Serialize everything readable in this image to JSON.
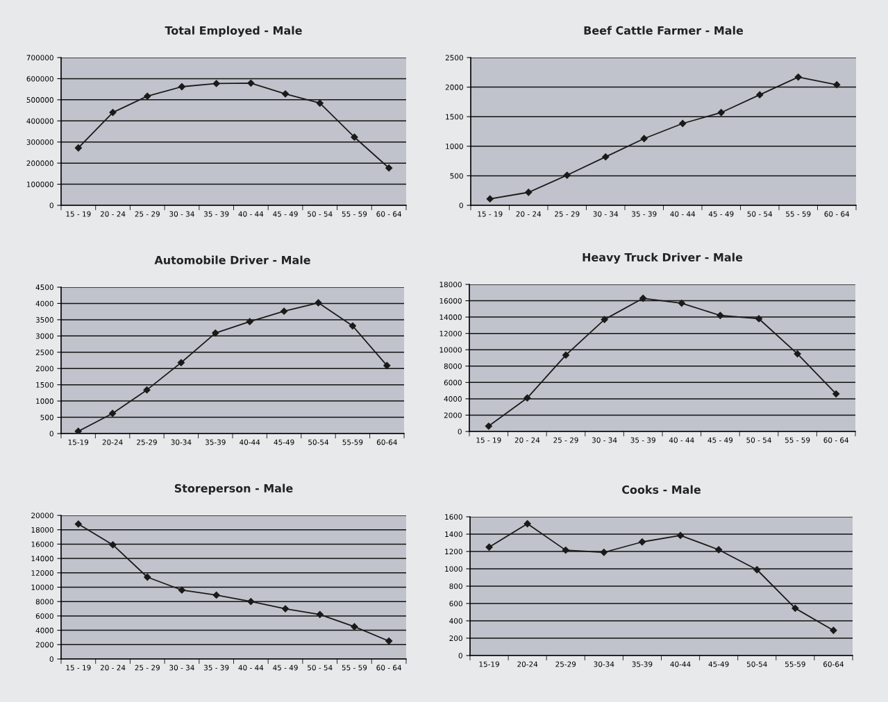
{
  "chart_data": [
    {
      "type": "line",
      "title": "Total Employed - Male",
      "categories": [
        "15 - 19",
        "20 - 24",
        "25 - 29",
        "30 - 34",
        "35 - 39",
        "40 - 44",
        "45 - 49",
        "50 - 54",
        "55 - 59",
        "60 - 64"
      ],
      "ylim": [
        0,
        700000
      ],
      "yticks": [
        0,
        100000,
        200000,
        300000,
        400000,
        500000,
        600000,
        700000
      ],
      "grid": "y",
      "marker": "diamond",
      "line_style": "solid",
      "series": [
        {
          "color": "#1a1a1a",
          "values": [
            272000,
            440000,
            517000,
            562000,
            577000,
            579000,
            528000,
            484000,
            323000,
            177000
          ]
        }
      ]
    },
    {
      "type": "line",
      "title": "Beef Cattle Farmer - Male",
      "categories": [
        "15 - 19",
        "20 - 24",
        "25 - 29",
        "30 - 34",
        "35 - 39",
        "40 - 44",
        "45 - 49",
        "50 - 54",
        "55 - 59",
        "60 - 64"
      ],
      "ylim": [
        0,
        2500
      ],
      "yticks": [
        0,
        500,
        1000,
        1500,
        2000,
        2500
      ],
      "grid": "y",
      "marker": "diamond",
      "line_style": "solid",
      "series": [
        {
          "color": "#1a1a1a",
          "values": [
            110,
            220,
            510,
            820,
            1130,
            1385,
            1570,
            1870,
            2170,
            2040
          ]
        }
      ]
    },
    {
      "type": "line",
      "title": "Automobile Driver - Male",
      "categories": [
        "15-19",
        "20-24",
        "25-29",
        "30-34",
        "35-39",
        "40-44",
        "45-49",
        "50-54",
        "55-59",
        "60-64"
      ],
      "ylim": [
        0,
        4500
      ],
      "yticks": [
        0,
        500,
        1000,
        1500,
        2000,
        2500,
        3000,
        3500,
        4000,
        4500
      ],
      "grid": "y",
      "marker": "diamond",
      "line_style": "solid",
      "series": [
        {
          "color": "#1a1a1a",
          "values": [
            70,
            620,
            1340,
            2180,
            3090,
            3440,
            3760,
            4020,
            3310,
            2090
          ]
        }
      ]
    },
    {
      "type": "line",
      "title": "Heavy Truck Driver - Male",
      "categories": [
        "15 - 19",
        "20 - 24",
        "25 - 29",
        "30 - 34",
        "35 - 39",
        "40 - 44",
        "45 - 49",
        "50 - 54",
        "55 - 59",
        "60 - 64"
      ],
      "ylim": [
        0,
        18000
      ],
      "yticks": [
        0,
        2000,
        4000,
        6000,
        8000,
        10000,
        12000,
        14000,
        16000,
        18000
      ],
      "grid": "y",
      "marker": "diamond",
      "line_style": "solid",
      "series": [
        {
          "color": "#1a1a1a",
          "values": [
            650,
            4100,
            9350,
            13700,
            16300,
            15700,
            14200,
            13800,
            9500,
            4600
          ]
        }
      ]
    },
    {
      "type": "line",
      "title": "Storeperson - Male",
      "categories": [
        "15 - 19",
        "20 - 24",
        "25 - 29",
        "30 - 34",
        "35 - 39",
        "40 - 44",
        "45 - 49",
        "50 - 54",
        "55 - 59",
        "60 - 64"
      ],
      "ylim": [
        0,
        20000
      ],
      "yticks": [
        0,
        2000,
        4000,
        6000,
        8000,
        10000,
        12000,
        14000,
        16000,
        18000,
        20000
      ],
      "grid": "y",
      "marker": "diamond",
      "line_style": "solid",
      "series": [
        {
          "color": "#1a1a1a",
          "values": [
            18800,
            15900,
            11400,
            9600,
            8900,
            8000,
            7000,
            6200,
            4500,
            2500
          ]
        }
      ]
    },
    {
      "type": "line",
      "title": "Cooks - Male",
      "categories": [
        "15-19",
        "20-24",
        "25-29",
        "30-34",
        "35-39",
        "40-44",
        "45-49",
        "50-54",
        "55-59",
        "60-64"
      ],
      "ylim": [
        0,
        1600
      ],
      "yticks": [
        0,
        200,
        400,
        600,
        800,
        1000,
        1200,
        1400,
        1600
      ],
      "grid": "y",
      "marker": "diamond",
      "line_style": "solid",
      "series": [
        {
          "color": "#1a1a1a",
          "values": [
            1250,
            1520,
            1215,
            1190,
            1310,
            1385,
            1220,
            990,
            545,
            290
          ]
        }
      ]
    }
  ]
}
